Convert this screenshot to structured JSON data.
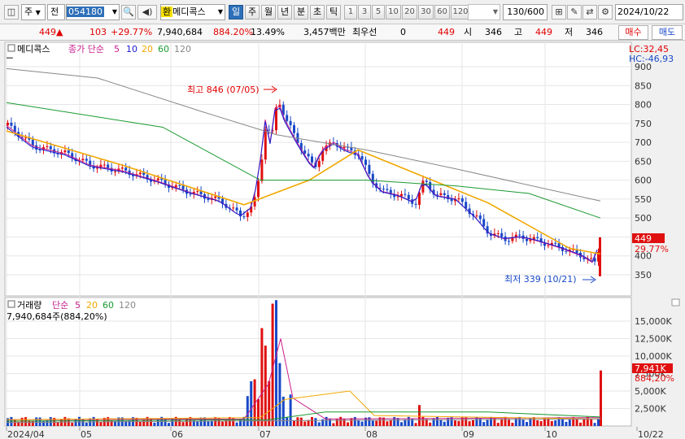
{
  "toolbar": {
    "period": "주",
    "prefix": "전",
    "code": "054180",
    "hwan": "환",
    "name": "메디콕스",
    "ranges": [
      "일",
      "주",
      "월",
      "년",
      "분",
      "초",
      "틱"
    ],
    "nums": [
      "1",
      "3",
      "5",
      "10",
      "20",
      "30",
      "60",
      "120"
    ],
    "count": "130/600",
    "date": "2024/10/22"
  },
  "info": {
    "price": "449",
    "change": "103",
    "change_pct": "+29.77%",
    "volume": "7,940,684",
    "vol_pct": "884.20%",
    "turnover": "13.49%",
    "amount": "3,457백만",
    "pref_label": "최우선",
    "pref_value": "0",
    "ask": "449",
    "open_label": "시",
    "open": "346",
    "high_label": "고",
    "high": "449",
    "low_label": "저",
    "low": "346",
    "buy": "매수",
    "sell": "매도"
  },
  "price_panel": {
    "title": "메디콕스",
    "ma_label": "종가 단순",
    "ma": [
      {
        "n": "5",
        "color": "#c8208c"
      },
      {
        "n": "10",
        "color": "#1a1ad0"
      },
      {
        "n": "20",
        "color": "#f0a800"
      },
      {
        "n": "60",
        "color": "#1a9a30"
      },
      {
        "n": "120",
        "color": "#888888"
      }
    ],
    "lc": "LC:32,45",
    "hc": "HC:-46,93",
    "high_note": "최고 846 (07/05)",
    "low_note": "최저 339 (10/21)",
    "last_price": "449",
    "last_pct": "29.77%",
    "axis": [
      "900",
      "850",
      "800",
      "750",
      "700",
      "650",
      "600",
      "550",
      "500",
      "450",
      "400",
      "350"
    ]
  },
  "vol_panel": {
    "title": "거래량",
    "ma_label": "단순",
    "ma": [
      {
        "n": "5",
        "color": "#c8208c"
      },
      {
        "n": "20",
        "color": "#f0a800"
      },
      {
        "n": "60",
        "color": "#1a9a30"
      },
      {
        "n": "120",
        "color": "#888888"
      }
    ],
    "sub": "7,940,684주(884,20%)",
    "last_vol": "7,941K",
    "last_pct": "884,20%",
    "axis": [
      "15,000K",
      "12,500K",
      "10,000K",
      "7,500K",
      "5,000K",
      "2,500K"
    ]
  },
  "x_axis": [
    "2024/04",
    "05",
    "06",
    "07",
    "08",
    "09",
    "10",
    "10/22"
  ],
  "colors": {
    "up": "#e01010",
    "down": "#1848c8",
    "accent": "#2d6fb8"
  },
  "chart_data": {
    "type": "candlestick",
    "price_ylim": [
      330,
      905
    ],
    "volume_ylim": [
      0,
      17500
    ],
    "volume_unit": "K",
    "months": [
      "2024/04",
      "05",
      "06",
      "07",
      "08",
      "09",
      "10"
    ],
    "high": 846,
    "high_date": "07/05",
    "low": 339,
    "low_date": "10/21",
    "last": {
      "open": 346,
      "high": 449,
      "low": 346,
      "close": 449,
      "volume_k": 7941
    }
  }
}
